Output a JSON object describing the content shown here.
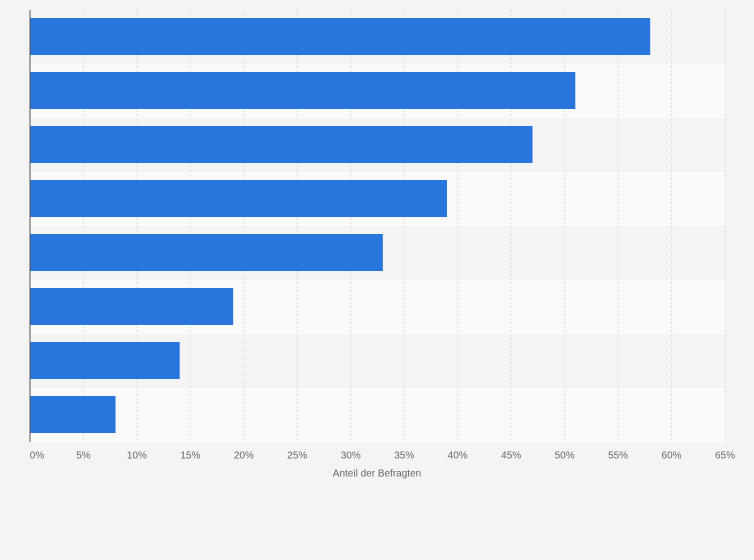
{
  "chart_data": {
    "type": "bar",
    "orientation": "horizontal",
    "categories": [
      null,
      null,
      null,
      null,
      null,
      null,
      null,
      null
    ],
    "values": [
      58,
      51,
      47,
      39,
      33,
      19,
      14,
      8
    ],
    "color": "#2876dd",
    "xlabel": "Anteil der Befragten",
    "xlim": [
      0,
      65
    ],
    "xticks": [
      {
        "value": 0,
        "label": "0%"
      },
      {
        "value": 5,
        "label": "5%"
      },
      {
        "value": 10,
        "label": "10%"
      },
      {
        "value": 15,
        "label": "15%"
      },
      {
        "value": 20,
        "label": "20%"
      },
      {
        "value": 25,
        "label": "25%"
      },
      {
        "value": 30,
        "label": "30%"
      },
      {
        "value": 35,
        "label": "35%"
      },
      {
        "value": 40,
        "label": "40%"
      },
      {
        "value": 45,
        "label": "45%"
      },
      {
        "value": 50,
        "label": "50%"
      },
      {
        "value": 55,
        "label": "55%"
      },
      {
        "value": 60,
        "label": "60%"
      },
      {
        "value": 65,
        "label": "65%"
      }
    ],
    "grid": true
  }
}
